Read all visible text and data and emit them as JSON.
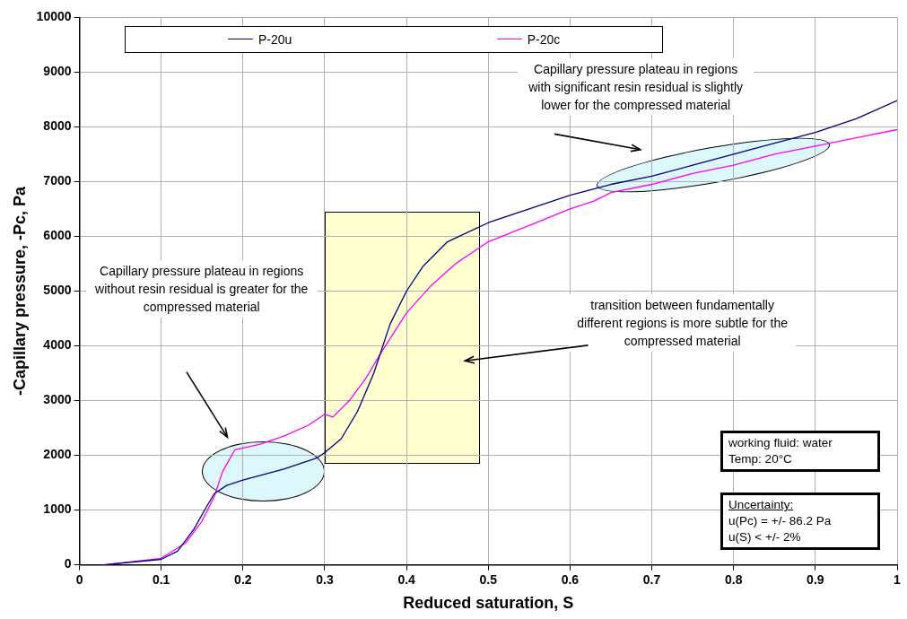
{
  "chart_data": {
    "type": "line",
    "xlabel": "Reduced saturation, S",
    "ylabel": "-Capillary pressure, -Pc, Pa",
    "xlim": [
      0,
      1
    ],
    "xticks": [
      0,
      0.1,
      0.2,
      0.3,
      0.4,
      0.5,
      0.6,
      0.7,
      0.8,
      0.9,
      1
    ],
    "ylim": [
      0,
      10000
    ],
    "yticks": [
      0,
      1000,
      2000,
      3000,
      4000,
      5000,
      6000,
      7000,
      8000,
      9000,
      10000
    ],
    "grid": true,
    "legend": "top",
    "marker": "none",
    "line_style": "solid",
    "series": [
      {
        "name": "P-20u",
        "color": "#000080",
        "x": [
          0.03,
          0.1,
          0.12,
          0.14,
          0.155,
          0.165,
          0.18,
          0.2,
          0.25,
          0.29,
          0.3,
          0.32,
          0.34,
          0.36,
          0.38,
          0.4,
          0.42,
          0.45,
          0.5,
          0.55,
          0.6,
          0.65,
          0.7,
          0.75,
          0.8,
          0.85,
          0.9,
          0.95,
          1.0
        ],
        "values": [
          0,
          100,
          250,
          650,
          1050,
          1300,
          1450,
          1550,
          1750,
          1950,
          2050,
          2300,
          2800,
          3500,
          4400,
          5000,
          5450,
          5900,
          6250,
          6500,
          6750,
          6950,
          7100,
          7300,
          7500,
          7700,
          7900,
          8150,
          8480
        ]
      },
      {
        "name": "P-20c",
        "color": "#ff00ff",
        "x": [
          0.03,
          0.1,
          0.13,
          0.15,
          0.165,
          0.175,
          0.19,
          0.22,
          0.25,
          0.28,
          0.3,
          0.31,
          0.33,
          0.35,
          0.37,
          0.4,
          0.43,
          0.46,
          0.5,
          0.55,
          0.6,
          0.63,
          0.65,
          0.7,
          0.75,
          0.8,
          0.85,
          0.9,
          0.95,
          1.0
        ],
        "values": [
          0,
          120,
          400,
          800,
          1250,
          1700,
          2100,
          2200,
          2350,
          2550,
          2750,
          2700,
          3000,
          3400,
          3900,
          4600,
          5100,
          5500,
          5900,
          6200,
          6500,
          6650,
          6800,
          6950,
          7150,
          7300,
          7500,
          7650,
          7800,
          7950
        ]
      }
    ],
    "annotations": [
      "Capillary pressure plateau in regions with significant resin residual is slightly lower for the compressed material",
      "Capillary pressure plateau in regions without resin residual is greater for the compressed material",
      "transition between fundamentally different regions is more subtle for the compressed material",
      "working fluid: water\nTemp: 20°C",
      "Uncertainty:\nu(Pc) = +/- 86.2 Pa\nu(S) < +/- 2%"
    ]
  }
}
